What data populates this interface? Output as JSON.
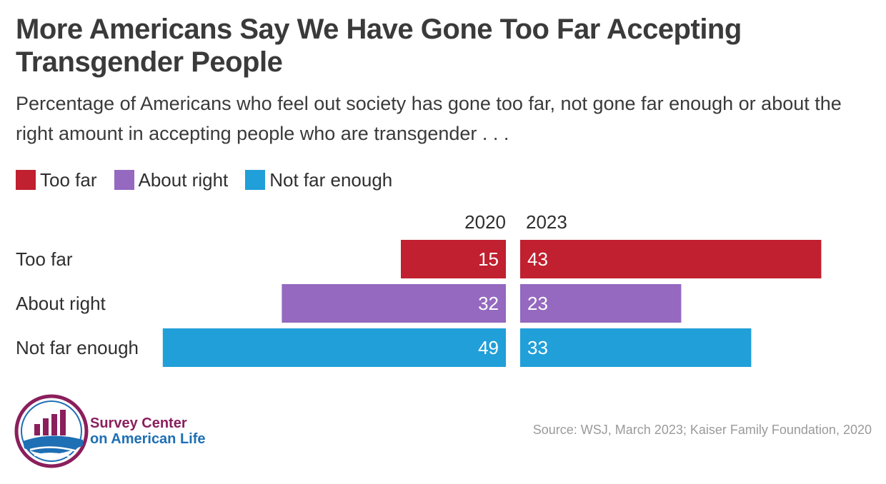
{
  "colors": {
    "too_far": "#c0202f",
    "about_right": "#9469bf",
    "not_far_enough": "#219fd8",
    "brand_maroon": "#8a1f5c",
    "brand_blue": "#1e6fb4"
  },
  "brand": {
    "line1": "Survey Center",
    "line2": "on American Life"
  },
  "source": "Source: WSJ, March 2023; Kaiser Family Foundation, 2020",
  "chart_data": {
    "type": "bar",
    "title": "More Americans Say We Have Gone Too Far Accepting Transgender People",
    "subtitle": "Percentage of Americans who feel out society has gone too far, not gone far enough or about the right amount in accepting people who are transgender . . .",
    "legend": [
      {
        "label": "Too far",
        "color_key": "too_far"
      },
      {
        "label": "About right",
        "color_key": "about_right"
      },
      {
        "label": "Not far enough",
        "color_key": "not_far_enough"
      }
    ],
    "categories": [
      "Too far",
      "About right",
      "Not far enough"
    ],
    "category_colors": [
      "too_far",
      "about_right",
      "not_far_enough"
    ],
    "series": [
      {
        "name": "2020",
        "values": [
          15,
          32,
          49
        ]
      },
      {
        "name": "2023",
        "values": [
          43,
          23,
          33
        ]
      }
    ],
    "xlim": [
      0,
      50
    ],
    "xlabel": "",
    "ylabel": ""
  }
}
